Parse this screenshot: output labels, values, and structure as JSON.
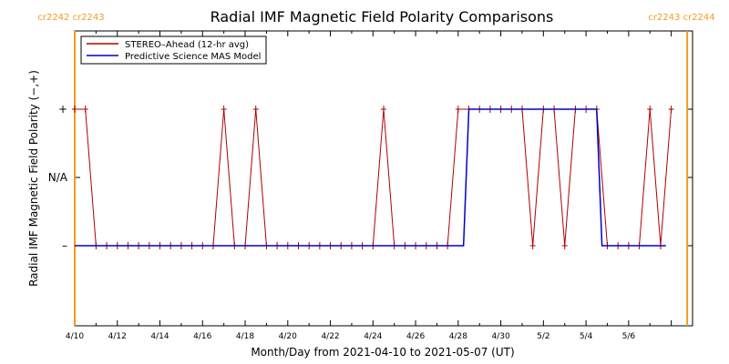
{
  "chart_data": {
    "type": "line",
    "title": "Radial IMF Magnetic Field Polarity Comparisons",
    "xlabel": "Month/Day from 2021-04-10 to 2021-05-07 (UT)",
    "ylabel": "Radial IMF Magnetic Field Polarity (−,+)",
    "xlim": [
      "2021-04-10",
      "2021-05-09"
    ],
    "x_tick_labels": [
      "4/10",
      "4/12",
      "4/14",
      "4/16",
      "4/18",
      "4/20",
      "4/22",
      "4/24",
      "4/26",
      "4/28",
      "4/30",
      "5/2",
      "5/4",
      "5/6"
    ],
    "y_categories": [
      "–",
      "N/A",
      "+"
    ],
    "y_tick_labels": [
      "–",
      "N/A",
      "+"
    ],
    "legend_position": "top-left",
    "carrington_markers": [
      {
        "date": "2021-04-10 00:00",
        "label": "cr2242 cr2243",
        "color": "#f39a1e",
        "side": "left"
      },
      {
        "date": "2021-05-08 18:00",
        "label": "cr2243 cr2244",
        "color": "#f39a1e",
        "side": "right"
      }
    ],
    "series": [
      {
        "name": "STEREO–Ahead (12-hr avg)",
        "color": "#b00000",
        "marker": "+",
        "points": [
          [
            "2021-04-10 00:00",
            "+"
          ],
          [
            "2021-04-10 12:00",
            "+"
          ],
          [
            "2021-04-11 00:00",
            "–"
          ],
          [
            "2021-04-11 12:00",
            "–"
          ],
          [
            "2021-04-12 00:00",
            "–"
          ],
          [
            "2021-04-12 12:00",
            "–"
          ],
          [
            "2021-04-13 00:00",
            "–"
          ],
          [
            "2021-04-13 12:00",
            "–"
          ],
          [
            "2021-04-14 00:00",
            "–"
          ],
          [
            "2021-04-14 12:00",
            "–"
          ],
          [
            "2021-04-15 00:00",
            "–"
          ],
          [
            "2021-04-15 12:00",
            "–"
          ],
          [
            "2021-04-16 00:00",
            "–"
          ],
          [
            "2021-04-16 12:00",
            "–"
          ],
          [
            "2021-04-17 00:00",
            "+"
          ],
          [
            "2021-04-17 12:00",
            "–"
          ],
          [
            "2021-04-18 00:00",
            "–"
          ],
          [
            "2021-04-18 12:00",
            "+"
          ],
          [
            "2021-04-19 00:00",
            "–"
          ],
          [
            "2021-04-19 12:00",
            "–"
          ],
          [
            "2021-04-20 00:00",
            "–"
          ],
          [
            "2021-04-20 12:00",
            "–"
          ],
          [
            "2021-04-21 00:00",
            "–"
          ],
          [
            "2021-04-21 12:00",
            "–"
          ],
          [
            "2021-04-22 00:00",
            "–"
          ],
          [
            "2021-04-22 12:00",
            "–"
          ],
          [
            "2021-04-23 00:00",
            "–"
          ],
          [
            "2021-04-23 12:00",
            "–"
          ],
          [
            "2021-04-24 00:00",
            "–"
          ],
          [
            "2021-04-24 12:00",
            "+"
          ],
          [
            "2021-04-25 00:00",
            "–"
          ],
          [
            "2021-04-25 12:00",
            "–"
          ],
          [
            "2021-04-26 00:00",
            "–"
          ],
          [
            "2021-04-26 12:00",
            "–"
          ],
          [
            "2021-04-27 00:00",
            "–"
          ],
          [
            "2021-04-27 12:00",
            "–"
          ],
          [
            "2021-04-28 00:00",
            "+"
          ],
          [
            "2021-04-28 12:00",
            "+"
          ],
          [
            "2021-04-29 00:00",
            "+"
          ],
          [
            "2021-04-29 12:00",
            "+"
          ],
          [
            "2021-04-30 00:00",
            "+"
          ],
          [
            "2021-04-30 12:00",
            "+"
          ],
          [
            "2021-05-01 00:00",
            "+"
          ],
          [
            "2021-05-01 12:00",
            "–"
          ],
          [
            "2021-05-02 00:00",
            "+"
          ],
          [
            "2021-05-02 12:00",
            "+"
          ],
          [
            "2021-05-03 00:00",
            "–"
          ],
          [
            "2021-05-03 12:00",
            "+"
          ],
          [
            "2021-05-04 00:00",
            "+"
          ],
          [
            "2021-05-04 12:00",
            "+"
          ],
          [
            "2021-05-05 00:00",
            "–"
          ],
          [
            "2021-05-05 12:00",
            "–"
          ],
          [
            "2021-05-06 00:00",
            "–"
          ],
          [
            "2021-05-06 12:00",
            "–"
          ],
          [
            "2021-05-07 00:00",
            "+"
          ],
          [
            "2021-05-07 12:00",
            "–"
          ],
          [
            "2021-05-08 00:00",
            "+"
          ]
        ]
      },
      {
        "name": "Predictive Science MAS Model",
        "color": "#0000c8",
        "marker": "",
        "points": [
          [
            "2021-04-10 00:00",
            "–"
          ],
          [
            "2021-04-28 06:00",
            "–"
          ],
          [
            "2021-04-28 12:00",
            "+"
          ],
          [
            "2021-05-04 12:00",
            "+"
          ],
          [
            "2021-05-04 18:00",
            "–"
          ],
          [
            "2021-05-07 18:00",
            "–"
          ]
        ]
      }
    ]
  }
}
